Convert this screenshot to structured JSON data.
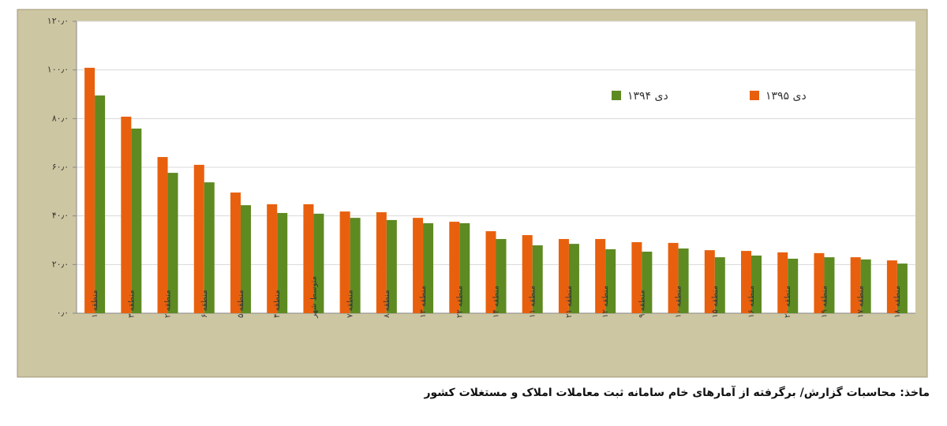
{
  "chart_data": {
    "type": "bar",
    "categories": [
      "منطقه ۱",
      "منطقه ۳",
      "منطقه ۲",
      "منطقه ۶",
      "منطقه ۵",
      "منطقه ۴",
      "متوسط شهر",
      "منطقه ۷",
      "منطقه ۸",
      "منطقه ۱۳",
      "منطقه ۲۲",
      "منطقه ۱۴",
      "منطقه ۱۱",
      "منطقه ۲۱",
      "منطقه ۱۲",
      "منطقه ۹",
      "منطقه ۱۰",
      "منطقه ۱۵",
      "منطقه ۱۶",
      "منطقه ۲۰",
      "منطقه ۱۹",
      "منطقه ۱۷",
      "منطقه ۱۸"
    ],
    "series": [
      {
        "name": "دی ۱۳۹۵",
        "color": "#e8600e",
        "values": [
          100.9,
          80.8,
          64.2,
          61.0,
          49.6,
          44.8,
          44.8,
          41.8,
          41.5,
          39.2,
          37.6,
          33.7,
          32.1,
          30.5,
          30.5,
          29.2,
          28.9,
          25.9,
          25.6,
          25.0,
          24.7,
          23.0,
          21.7
        ]
      },
      {
        "name": "دی ۱۳۹۴",
        "color": "#5e8a22",
        "values": [
          89.5,
          75.9,
          57.7,
          53.8,
          44.4,
          41.2,
          40.9,
          39.2,
          38.3,
          37.0,
          37.0,
          30.5,
          27.9,
          28.5,
          26.3,
          25.3,
          26.6,
          23.0,
          23.7,
          22.4,
          23.0,
          22.1,
          20.4
        ]
      }
    ],
    "ylim": [
      0,
      120
    ],
    "yticks": [
      {
        "value": 0,
        "label": "۰٫۰"
      },
      {
        "value": 20,
        "label": "۲۰٫۰"
      },
      {
        "value": 40,
        "label": "۴۰٫۰"
      },
      {
        "value": 60,
        "label": "۶۰٫۰"
      },
      {
        "value": 80,
        "label": "۸۰٫۰"
      },
      {
        "value": 100,
        "label": "۱۰۰٫۰"
      },
      {
        "value": 120,
        "label": "۱۲۰٫۰"
      }
    ],
    "grid": true,
    "source": "ماخذ: محاسبات گزارش/ برگرفته از آمارهای خام سامانه ثبت معاملات املاک و مستغلات کشور"
  }
}
